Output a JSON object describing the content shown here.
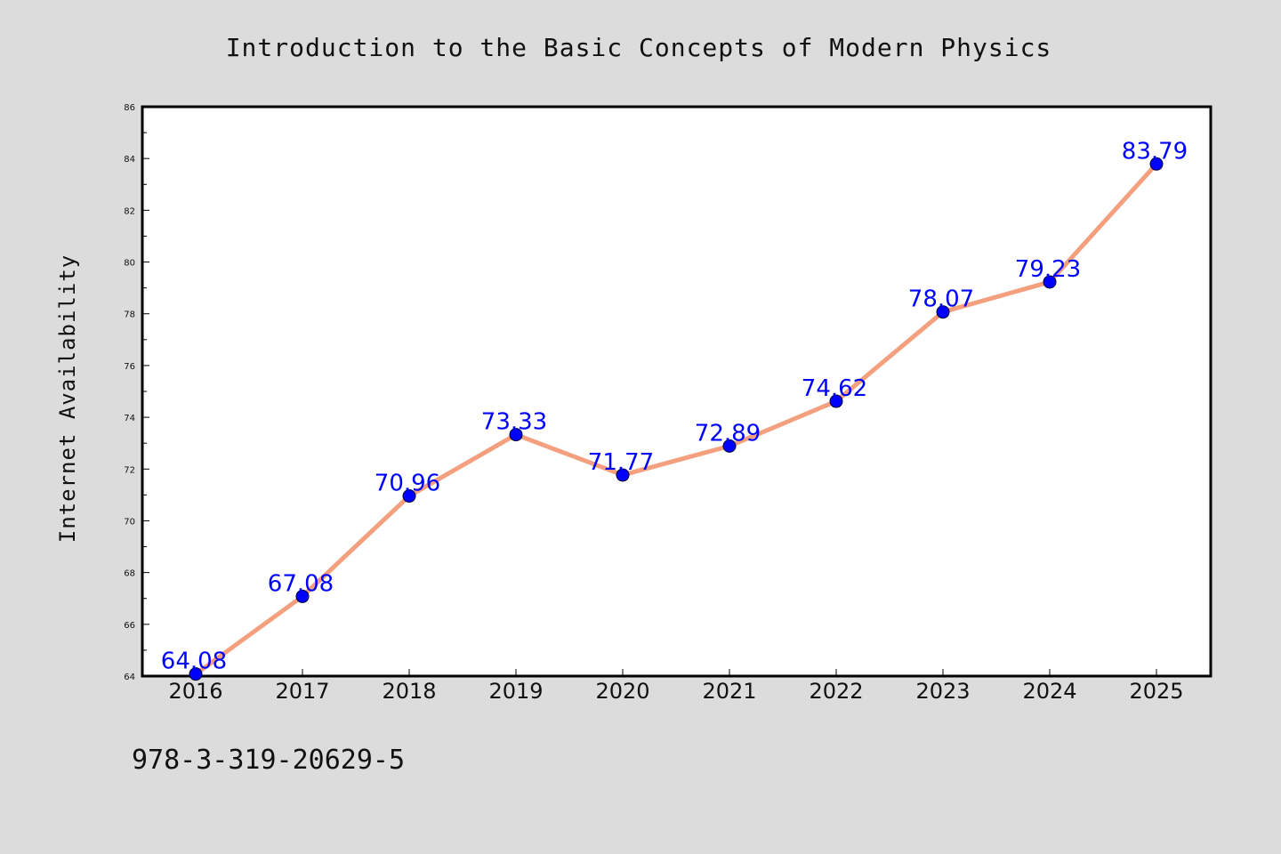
{
  "chart_data": {
    "type": "line",
    "title": "Introduction to the Basic Concepts of Modern Physics",
    "xlabel": "",
    "ylabel": "Internet Availability",
    "categories": [
      "2016",
      "2017",
      "2018",
      "2019",
      "2020",
      "2021",
      "2022",
      "2023",
      "2024",
      "2025"
    ],
    "values": [
      64.08,
      67.08,
      70.96,
      73.33,
      71.77,
      72.89,
      74.62,
      78.07,
      79.23,
      83.79
    ],
    "data_labels": [
      "64.08",
      "67.08",
      "70.96",
      "73.33",
      "71.77",
      "72.89",
      "74.62",
      "78.07",
      "79.23",
      "83.79"
    ],
    "ylim": [
      64,
      86
    ],
    "yticks": [
      64,
      66,
      68,
      70,
      72,
      74,
      76,
      78,
      80,
      82,
      84,
      86
    ],
    "grid": false,
    "legend": "none",
    "colors": {
      "line": "#f4a07e",
      "marker": "#0000ff",
      "label": "#0000ff",
      "plot_background": "#ffffff",
      "page_background": "#dcdcdc"
    }
  },
  "footer": {
    "code": "978-3-319-20629-5"
  }
}
